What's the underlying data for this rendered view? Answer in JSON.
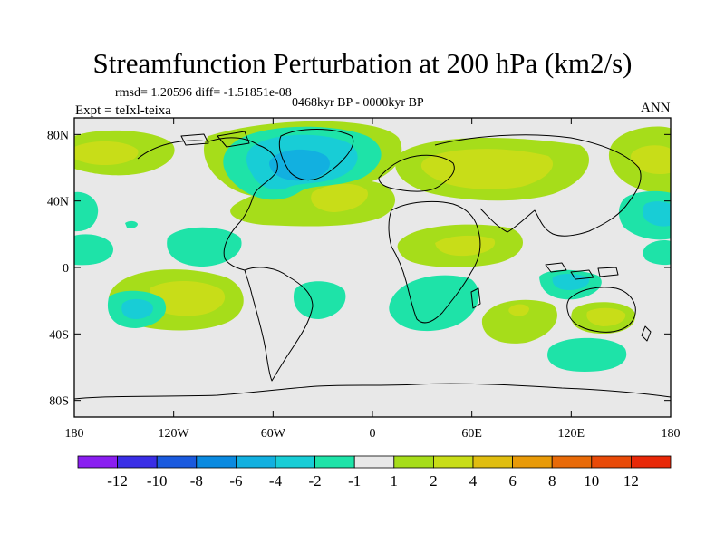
{
  "title": "Streamfunction Perturbation at 200 hPa (km2/s)",
  "stats": "rmsd= 1.20596 diff= -1.51851e-08",
  "experiment": "Expt = teIxl-teixa",
  "period": "0468kyr BP - 0000kyr BP",
  "season": "ANN",
  "axes": {
    "x_ticks": [
      "180",
      "120W",
      "60W",
      "0",
      "60E",
      "120E",
      "180"
    ],
    "y_ticks": [
      "80N",
      "40N",
      "0",
      "40S",
      "80S"
    ]
  },
  "colorbar": {
    "labels": [
      "-12",
      "-10",
      "-8",
      "-6",
      "-4",
      "-2",
      "-1",
      "1",
      "2",
      "4",
      "6",
      "8",
      "10",
      "12"
    ],
    "colors": [
      "#8a1ef0",
      "#3a2ee6",
      "#1a5ade",
      "#0a8ae0",
      "#12b0e0",
      "#18cdd6",
      "#1ee3a8",
      "#e8e8e8",
      "#a6dd1a",
      "#c8dd18",
      "#e0bd10",
      "#e89a08",
      "#e86a08",
      "#e84a08",
      "#e82808"
    ]
  },
  "map_colors": {
    "background": "#e8e8e8",
    "c_m1": "#1ee3a8",
    "c_m2": "#18cdd6",
    "c_m4": "#12b0e0",
    "c_p1": "#a6dd1a",
    "c_p2": "#c8dd18",
    "c_p4": "#e0bd10"
  }
}
